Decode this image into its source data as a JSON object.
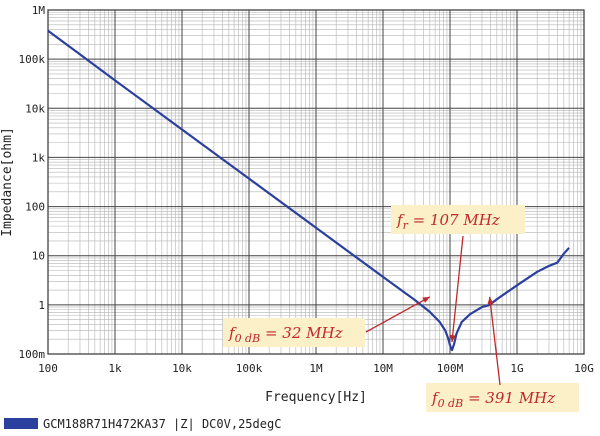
{
  "chart_data": {
    "type": "line",
    "x_scale": "log",
    "y_scale": "log",
    "xlabel": "Frequency[Hz]",
    "ylabel": "Impedance[ohm]",
    "xlim": [
      100,
      10000000000
    ],
    "ylim": [
      0.1,
      1000000
    ],
    "grid": true,
    "x_ticks": [
      {
        "value": 100,
        "label": "100"
      },
      {
        "value": 1000,
        "label": "1k"
      },
      {
        "value": 10000,
        "label": "10k"
      },
      {
        "value": 100000,
        "label": "100k"
      },
      {
        "value": 1000000,
        "label": "1M"
      },
      {
        "value": 10000000,
        "label": "10M"
      },
      {
        "value": 100000000,
        "label": "100M"
      },
      {
        "value": 1000000000,
        "label": "1G"
      },
      {
        "value": 10000000000,
        "label": "10G"
      }
    ],
    "y_ticks": [
      {
        "value": 0.1,
        "label": "100m"
      },
      {
        "value": 1,
        "label": "1"
      },
      {
        "value": 10,
        "label": "10"
      },
      {
        "value": 100,
        "label": "100"
      },
      {
        "value": 1000,
        "label": "1k"
      },
      {
        "value": 10000,
        "label": "10k"
      },
      {
        "value": 100000,
        "label": "100k"
      },
      {
        "value": 1000000,
        "label": "1M"
      }
    ],
    "series": [
      {
        "name": "GCM188R71H472KA37 |Z| DC0V,25degC",
        "color": "#2b3f9e",
        "points": [
          [
            100,
            380000
          ],
          [
            300,
            125000
          ],
          [
            1000,
            37000
          ],
          [
            10000,
            3700
          ],
          [
            100000,
            370
          ],
          [
            1000000,
            37
          ],
          [
            10000000,
            3.7
          ],
          [
            30000000,
            1.25
          ],
          [
            50000000,
            0.72
          ],
          [
            70000000,
            0.45
          ],
          [
            85000000,
            0.3
          ],
          [
            95000000,
            0.2
          ],
          [
            100000000,
            0.15
          ],
          [
            107000000,
            0.12
          ],
          [
            115000000,
            0.16
          ],
          [
            125000000,
            0.26
          ],
          [
            150000000,
            0.45
          ],
          [
            200000000,
            0.65
          ],
          [
            300000000,
            0.9
          ],
          [
            391000000,
            1.0
          ],
          [
            500000000,
            1.3
          ],
          [
            1000000000,
            2.5
          ],
          [
            2000000000,
            4.7
          ],
          [
            3000000000,
            6.2
          ],
          [
            4000000000,
            7.2
          ],
          [
            5000000000,
            11.0
          ],
          [
            6000000000,
            14.5
          ]
        ]
      }
    ],
    "annotations": [
      {
        "text": "f_r = 107 MHz",
        "sym": "f",
        "sub": "r",
        "rest": " = 107 MHz",
        "x": 107000000,
        "y": 0.12
      },
      {
        "text": "f_0 dB = 32 MHz",
        "sym": "f",
        "sub": "0 dB",
        "rest": " = 32 MHz",
        "x": 50000000,
        "y": 1.0
      },
      {
        "text": "f_0 dB = 391 MHz",
        "sym": "f",
        "sub": "0 dB",
        "rest": " = 391 MHz",
        "x": 391000000,
        "y": 1.0
      }
    ],
    "legend": {
      "label": "GCM188R71H472KA37 |Z| DC0V,25degC",
      "position": "bottom-left"
    }
  }
}
